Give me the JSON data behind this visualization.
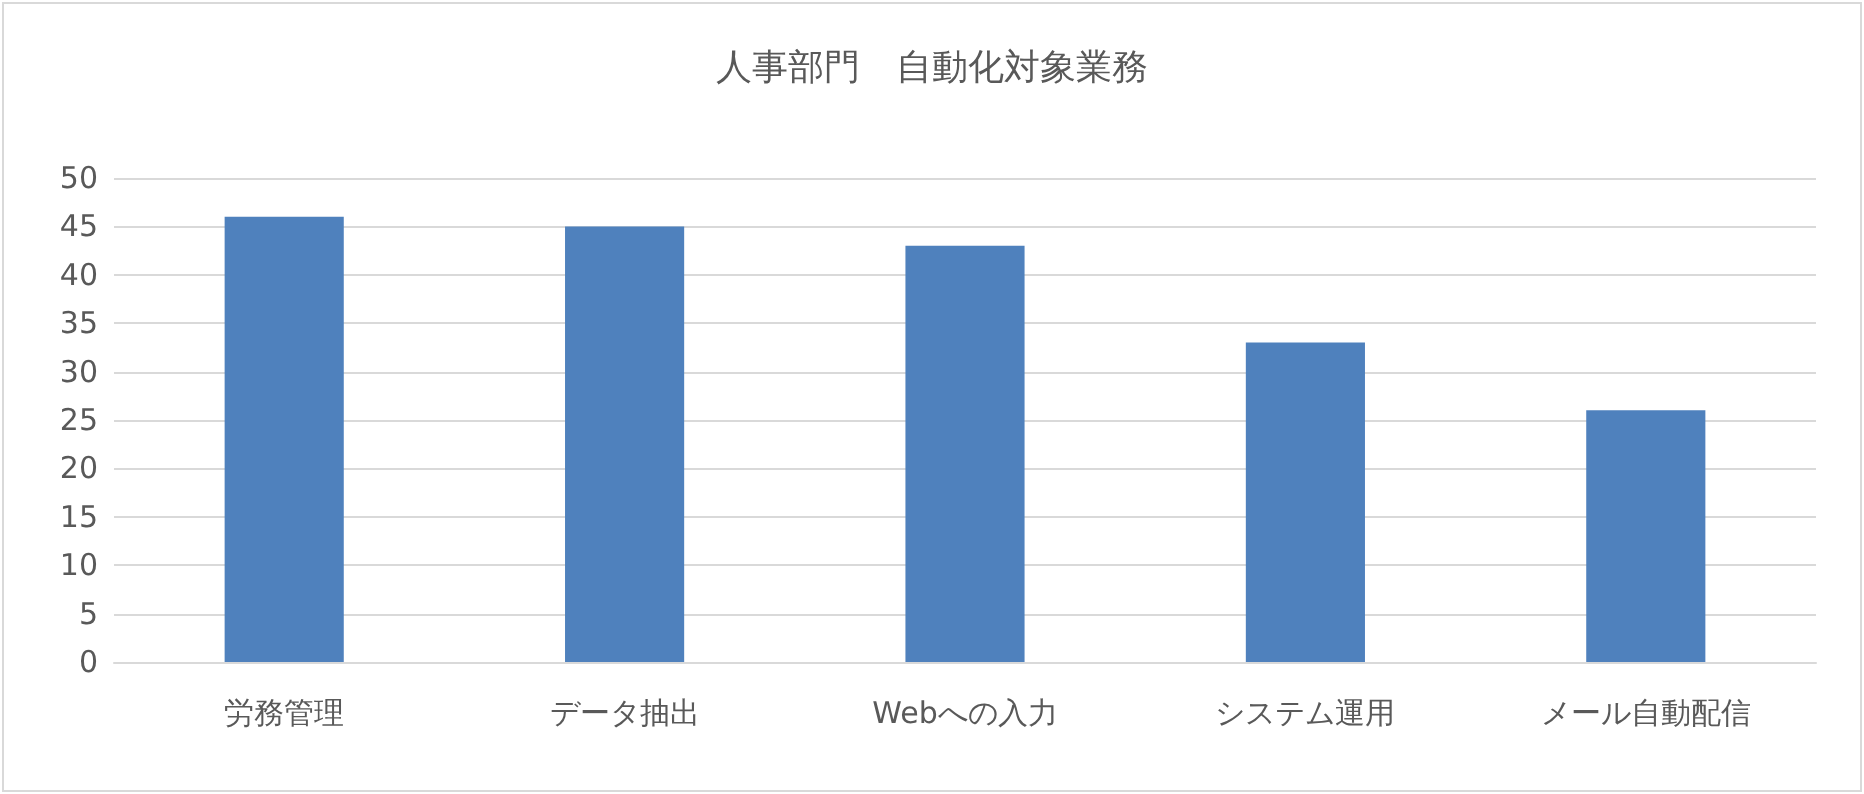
{
  "chart_data": {
    "type": "bar",
    "title": "人事部門　自動化対象業務",
    "categories": [
      "労務管理",
      "データ抽出",
      "Webへの入力",
      "システム運用",
      "メール自動配信"
    ],
    "values": [
      46,
      45,
      43,
      33,
      26
    ],
    "color": "#4f81bd",
    "ylim": [
      0,
      50
    ],
    "yticks": [
      0,
      5,
      10,
      15,
      20,
      25,
      30,
      35,
      40,
      45,
      50
    ],
    "grid": "y"
  }
}
